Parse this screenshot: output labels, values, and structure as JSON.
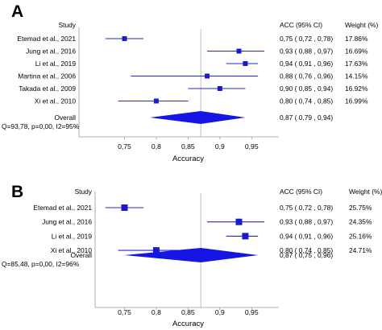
{
  "chart_data": [
    {
      "type": "forest",
      "panel": "A",
      "header": {
        "study": "Study",
        "acc": "ACC (95% CI)",
        "weight": "Weight (%)"
      },
      "xlabel": "Accuracy",
      "xlim": [
        0.7,
        0.975
      ],
      "ticks": [
        "0,75",
        "0,8",
        "0,85",
        "0,9",
        "0,95"
      ],
      "tick_values": [
        0.75,
        0.8,
        0.85,
        0.9,
        0.95
      ],
      "reference_line": 0.87,
      "studies": [
        {
          "name": "Etemad et al., 2021",
          "acc": 0.75,
          "lo": 0.72,
          "hi": 0.78,
          "ci_text": "0,75  ( 0,72 , 0,78)",
          "weight": "17.86%"
        },
        {
          "name": "Jung et al., 2016",
          "acc": 0.93,
          "lo": 0.88,
          "hi": 0.97,
          "ci_text": "0,93  ( 0,88 , 0,97)",
          "weight": "16.69%"
        },
        {
          "name": "Li et al., 2019",
          "acc": 0.94,
          "lo": 0.91,
          "hi": 0.96,
          "ci_text": "0,94  ( 0,91 , 0,96)",
          "weight": "17.63%"
        },
        {
          "name": "Martina et al., 2006",
          "acc": 0.88,
          "lo": 0.76,
          "hi": 0.96,
          "ci_text": "0,88  ( 0,76 , 0,96)",
          "weight": "14.15%"
        },
        {
          "name": "Takada et al., 2009",
          "acc": 0.9,
          "lo": 0.85,
          "hi": 0.94,
          "ci_text": "0,90  ( 0,85 , 0,94)",
          "weight": "16.92%"
        },
        {
          "name": "Xi et al., 2010",
          "acc": 0.8,
          "lo": 0.74,
          "hi": 0.85,
          "ci_text": "0,80  ( 0,74 , 0,85)",
          "weight": "16.99%"
        }
      ],
      "overall": {
        "name": "Overall",
        "acc": 0.87,
        "lo": 0.79,
        "hi": 0.94,
        "ci_text": "0,87  ( 0,79 , 0,94)"
      },
      "heterogeneity": "Q=93,78, p=0,00, I2=95%"
    },
    {
      "type": "forest",
      "panel": "B",
      "header": {
        "study": "Study",
        "acc": "ACC (95% CI)",
        "weight": "Weight (%)"
      },
      "xlabel": "Accuracy",
      "xlim": [
        0.7,
        0.975
      ],
      "ticks": [
        "0,75",
        "0,8",
        "0,85",
        "0,9",
        "0,95"
      ],
      "tick_values": [
        0.75,
        0.8,
        0.85,
        0.9,
        0.95
      ],
      "reference_line": 0.87,
      "studies": [
        {
          "name": "Etemad et al., 2021",
          "acc": 0.75,
          "lo": 0.72,
          "hi": 0.78,
          "ci_text": "0,75  ( 0,72 , 0,78)",
          "weight": "25.75%"
        },
        {
          "name": "Jung et al., 2016",
          "acc": 0.93,
          "lo": 0.88,
          "hi": 0.97,
          "ci_text": "0,93  ( 0,88 , 0,97)",
          "weight": "24.35%"
        },
        {
          "name": "Li et al., 2019",
          "acc": 0.94,
          "lo": 0.91,
          "hi": 0.96,
          "ci_text": "0,94  ( 0,91 , 0,96)",
          "weight": "25.16%"
        },
        {
          "name": "Xi et al., 2010",
          "acc": 0.8,
          "lo": 0.74,
          "hi": 0.85,
          "ci_text": "0,80  ( 0,74 , 0,85)",
          "weight": "24.71%"
        }
      ],
      "overall": {
        "name": "Overall",
        "acc": 0.87,
        "lo": 0.75,
        "hi": 0.96,
        "ci_text": "0,87  ( 0,75 , 0,96)"
      },
      "heterogeneity": "Q=85,48, p=0,00, I2=96%"
    }
  ],
  "colors": {
    "marker": "#1a1acc",
    "ci_line": "#2525cc",
    "diamond": "#1515e6",
    "reference": "#b0b0b0",
    "frame": "#9a9a9a",
    "text": "#000000"
  }
}
